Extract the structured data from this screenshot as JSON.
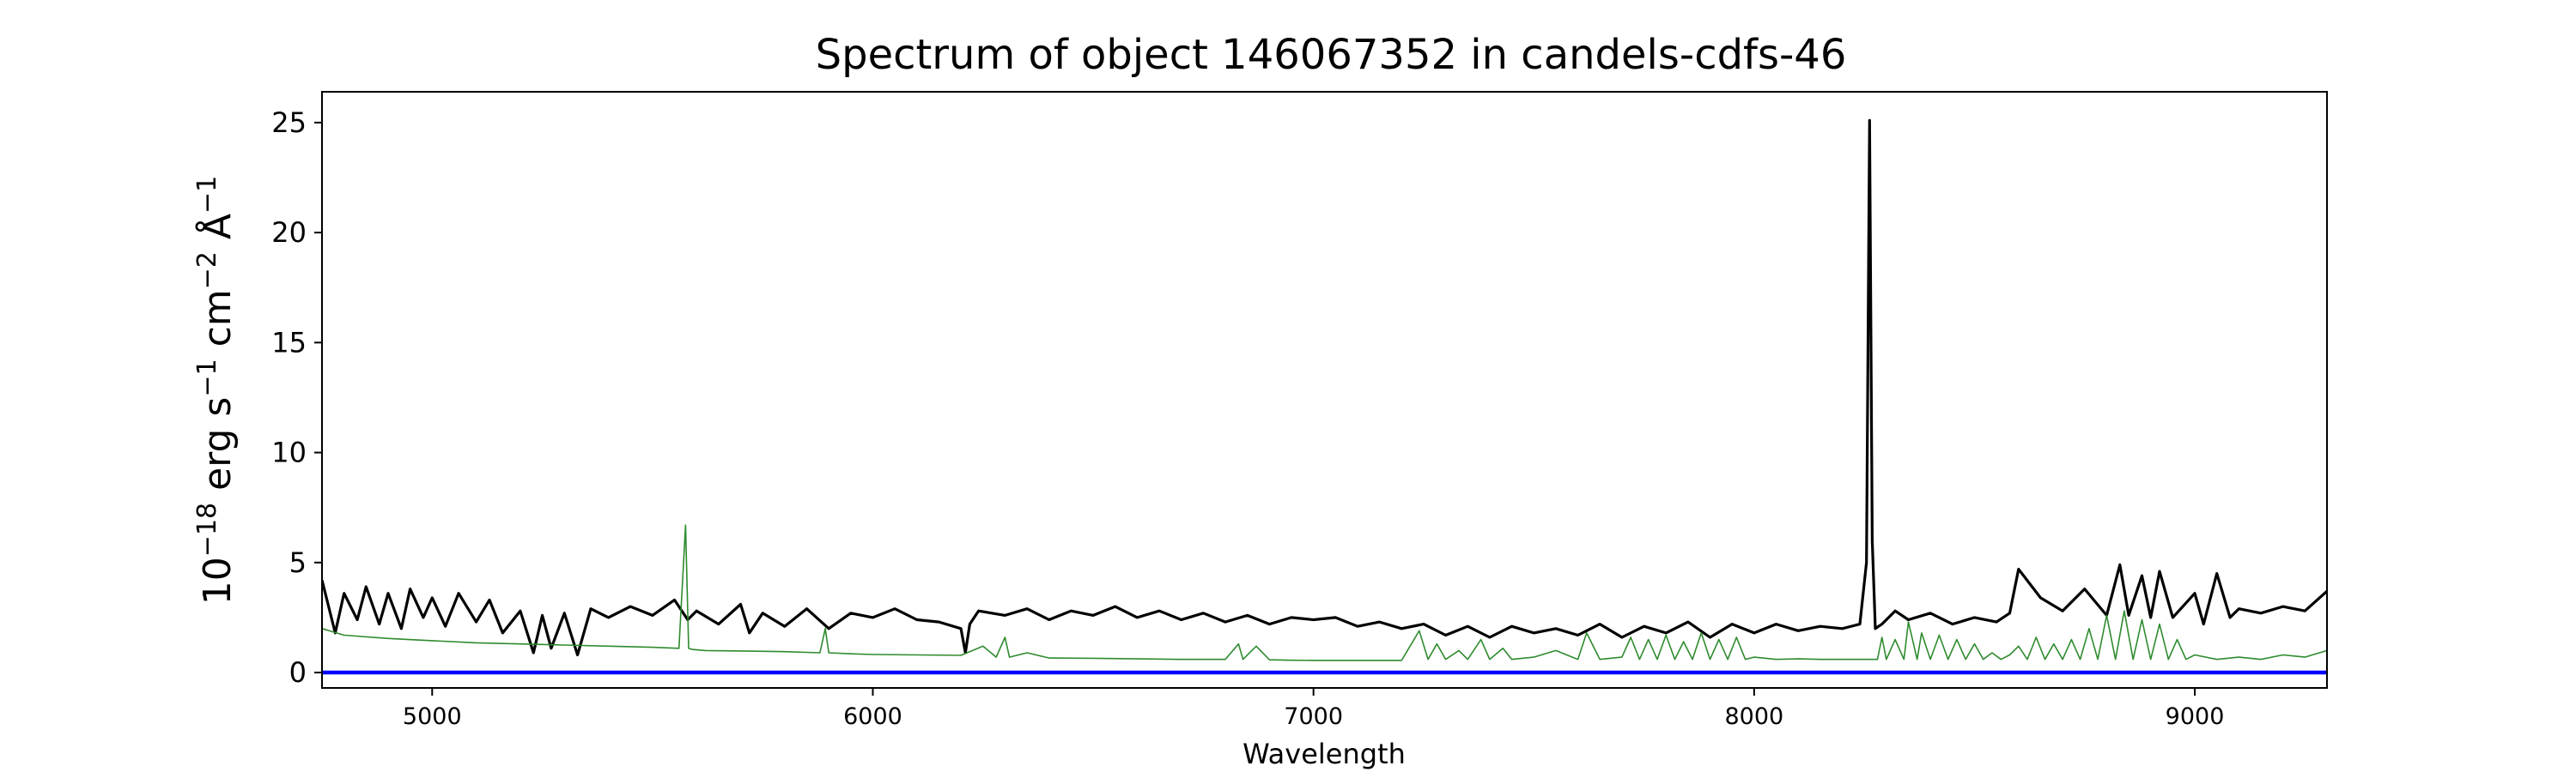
{
  "chart_data": {
    "type": "line",
    "title": "Spectrum of object 146067352 in candels-cdfs-46",
    "xlabel": "Wavelength",
    "ylabel_parts": {
      "base": "10",
      "exp": "−18",
      "unit1": " erg s",
      "exp1": "−1",
      "unit2": " cm",
      "exp2": "−2",
      "unit3": " Å",
      "exp3": "−1"
    },
    "xlim": [
      4750,
      9300
    ],
    "ylim": [
      -0.7,
      26.4
    ],
    "xticks": [
      5000,
      6000,
      7000,
      8000,
      9000
    ],
    "yticks": [
      0,
      5,
      10,
      15,
      20,
      25
    ],
    "grid": false,
    "legend": "none",
    "series": [
      {
        "role": "flux",
        "color": "#000000",
        "x": [
          4750,
          4780,
          4800,
          4830,
          4850,
          4880,
          4900,
          4930,
          4950,
          4980,
          5000,
          5030,
          5060,
          5100,
          5130,
          5160,
          5200,
          5230,
          5250,
          5270,
          5300,
          5330,
          5360,
          5400,
          5450,
          5500,
          5550,
          5580,
          5600,
          5650,
          5700,
          5720,
          5750,
          5800,
          5850,
          5900,
          5950,
          6000,
          6050,
          6100,
          6150,
          6200,
          6210,
          6220,
          6240,
          6300,
          6350,
          6400,
          6450,
          6500,
          6550,
          6600,
          6650,
          6700,
          6750,
          6800,
          6850,
          6900,
          6950,
          7000,
          7050,
          7100,
          7150,
          7200,
          7250,
          7300,
          7350,
          7400,
          7450,
          7500,
          7550,
          7600,
          7650,
          7700,
          7750,
          7800,
          7850,
          7900,
          7950,
          8000,
          8050,
          8100,
          8150,
          8200,
          8240,
          8255,
          8262,
          8268,
          8275,
          8290,
          8320,
          8350,
          8400,
          8450,
          8500,
          8550,
          8580,
          8600,
          8650,
          8700,
          8750,
          8800,
          8830,
          8850,
          8880,
          8900,
          8920,
          8950,
          9000,
          9020,
          9050,
          9080,
          9100,
          9150,
          9200,
          9250,
          9300
        ],
        "y": [
          4.2,
          1.8,
          3.6,
          2.4,
          3.9,
          2.2,
          3.6,
          2.0,
          3.8,
          2.5,
          3.4,
          2.1,
          3.6,
          2.3,
          3.3,
          1.8,
          2.8,
          0.9,
          2.6,
          1.1,
          2.7,
          0.8,
          2.9,
          2.5,
          3.0,
          2.6,
          3.3,
          2.4,
          2.8,
          2.2,
          3.1,
          1.8,
          2.7,
          2.1,
          2.9,
          2.0,
          2.7,
          2.5,
          2.9,
          2.4,
          2.3,
          2.0,
          0.9,
          2.2,
          2.8,
          2.6,
          2.9,
          2.4,
          2.8,
          2.6,
          3.0,
          2.5,
          2.8,
          2.4,
          2.7,
          2.3,
          2.6,
          2.2,
          2.5,
          2.4,
          2.5,
          2.1,
          2.3,
          2.0,
          2.2,
          1.7,
          2.1,
          1.6,
          2.1,
          1.8,
          2.0,
          1.7,
          2.2,
          1.6,
          2.1,
          1.8,
          2.3,
          1.6,
          2.2,
          1.8,
          2.2,
          1.9,
          2.1,
          2.0,
          2.2,
          5.0,
          25.1,
          6.0,
          2.0,
          2.2,
          2.8,
          2.4,
          2.7,
          2.2,
          2.5,
          2.3,
          2.7,
          4.7,
          3.4,
          2.8,
          3.8,
          2.6,
          4.9,
          2.6,
          4.4,
          2.5,
          4.6,
          2.5,
          3.6,
          2.2,
          4.5,
          2.5,
          2.9,
          2.7,
          3.0,
          2.8,
          3.7
        ]
      },
      {
        "role": "noise",
        "color": "#2e8b2e",
        "x": [
          4750,
          4800,
          4900,
          5000,
          5100,
          5200,
          5300,
          5400,
          5500,
          5560,
          5575,
          5582,
          5590,
          5620,
          5700,
          5800,
          5880,
          5892,
          5900,
          5950,
          6000,
          6100,
          6200,
          6250,
          6280,
          6300,
          6310,
          6350,
          6400,
          6500,
          6600,
          6700,
          6800,
          6830,
          6840,
          6870,
          6900,
          6950,
          7000,
          7100,
          7200,
          7240,
          7260,
          7280,
          7300,
          7330,
          7350,
          7380,
          7400,
          7430,
          7450,
          7500,
          7550,
          7600,
          7620,
          7650,
          7700,
          7720,
          7740,
          7760,
          7780,
          7800,
          7820,
          7840,
          7860,
          7880,
          7900,
          7920,
          7940,
          7960,
          7980,
          8000,
          8050,
          8100,
          8150,
          8200,
          8280,
          8290,
          8300,
          8320,
          8340,
          8350,
          8370,
          8380,
          8400,
          8420,
          8440,
          8460,
          8480,
          8500,
          8520,
          8540,
          8560,
          8580,
          8600,
          8620,
          8640,
          8660,
          8680,
          8700,
          8720,
          8740,
          8760,
          8780,
          8800,
          8820,
          8840,
          8860,
          8880,
          8900,
          8920,
          8940,
          8960,
          8980,
          9000,
          9050,
          9100,
          9150,
          9200,
          9250,
          9300
        ],
        "y": [
          2.0,
          1.7,
          1.55,
          1.45,
          1.35,
          1.3,
          1.25,
          1.2,
          1.15,
          1.1,
          6.7,
          1.1,
          1.05,
          1.0,
          0.98,
          0.95,
          0.9,
          2.0,
          0.9,
          0.85,
          0.82,
          0.8,
          0.78,
          1.2,
          0.7,
          1.6,
          0.7,
          0.9,
          0.66,
          0.65,
          0.62,
          0.6,
          0.6,
          1.3,
          0.6,
          1.2,
          0.58,
          0.56,
          0.55,
          0.55,
          0.55,
          1.9,
          0.6,
          1.3,
          0.6,
          1.0,
          0.6,
          1.5,
          0.6,
          1.1,
          0.6,
          0.7,
          1.0,
          0.6,
          1.8,
          0.6,
          0.7,
          1.6,
          0.6,
          1.5,
          0.6,
          1.7,
          0.6,
          1.4,
          0.6,
          1.8,
          0.6,
          1.5,
          0.6,
          1.6,
          0.6,
          0.7,
          0.6,
          0.62,
          0.6,
          0.6,
          0.6,
          1.6,
          0.6,
          1.5,
          0.6,
          2.3,
          0.6,
          1.8,
          0.6,
          1.7,
          0.6,
          1.5,
          0.6,
          1.3,
          0.6,
          0.9,
          0.6,
          0.8,
          1.2,
          0.6,
          1.6,
          0.6,
          1.3,
          0.6,
          1.5,
          0.6,
          2.0,
          0.6,
          2.6,
          0.6,
          2.8,
          0.6,
          2.4,
          0.6,
          2.2,
          0.6,
          1.5,
          0.6,
          0.8,
          0.6,
          0.7,
          0.6,
          0.8,
          0.7,
          1.0
        ]
      },
      {
        "role": "zero-line",
        "color": "#0000ff",
        "x": [
          4750,
          9300
        ],
        "y": [
          0,
          0
        ]
      }
    ]
  }
}
